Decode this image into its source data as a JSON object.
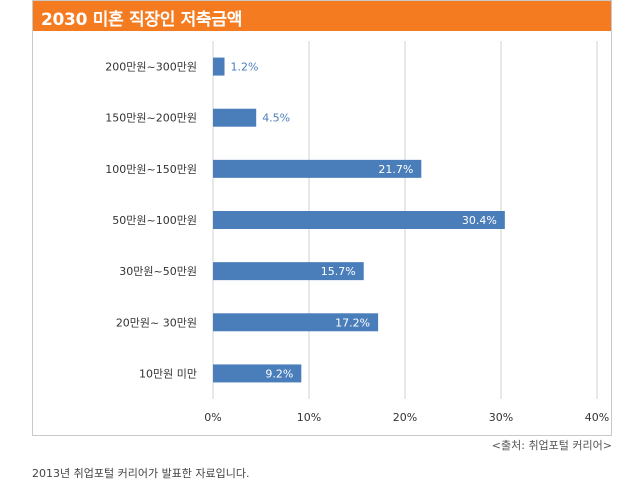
{
  "title": "2030 미혼 직장인 저축금액",
  "source": "<출처: 취업포털 커리어>",
  "caption": "2013년 취업포털 커리어가 발표한 자료입니다.",
  "colors": {
    "title_bar": "#f47b20",
    "bar": "#4a7ebb",
    "bar_label_outside": "#4a7ebb",
    "bar_label_inside": "#ffffff",
    "grid": "#d0d0d0"
  },
  "chart_data": {
    "type": "bar",
    "orientation": "horizontal",
    "categories": [
      "200만원~300만원",
      "150만원~200만원",
      "100만원~150만원",
      "50만원~100만원",
      "30만원~50만원",
      "20만원~ 30만원",
      "10만원 미만"
    ],
    "values": [
      1.2,
      4.5,
      21.7,
      30.4,
      15.7,
      17.2,
      9.2
    ],
    "value_labels": [
      "1.2%",
      "4.5%",
      "21.7%",
      "30.4%",
      "15.7%",
      "17.2%",
      "9.2%"
    ],
    "xlim": [
      0,
      40
    ],
    "ticks": [
      0,
      10,
      20,
      30,
      40
    ],
    "tick_labels": [
      "0%",
      "10%",
      "20%",
      "30%",
      "40%"
    ],
    "grid": true
  }
}
